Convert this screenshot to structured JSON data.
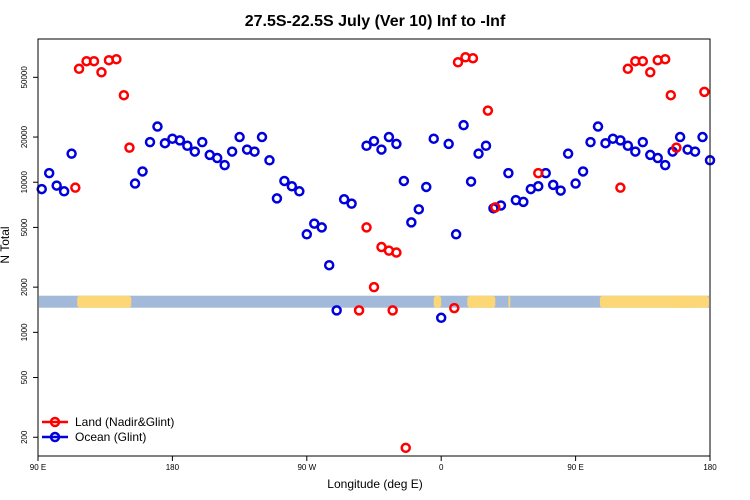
{
  "chart_data": {
    "type": "scatter",
    "title": "27.5S-22.5S July (Ver 10)   Inf to -Inf",
    "xlabel": "Longitude (deg E)",
    "ylabel": "N Total",
    "xlim": [
      90,
      450
    ],
    "ylim": [
      150,
      90000
    ],
    "yscale": "log",
    "grid": false,
    "legend_position": "bottom-left",
    "x_ticks": [
      {
        "value": 90,
        "label": "90 E"
      },
      {
        "value": 162,
        "label": "180"
      },
      {
        "value": 234,
        "label": "90 W"
      },
      {
        "value": 306,
        "label": "0"
      },
      {
        "value": 378,
        "label": "90 E"
      },
      {
        "value": 450,
        "label": "180"
      }
    ],
    "y_ticks": [
      {
        "value": 200,
        "label": "200"
      },
      {
        "value": 500,
        "label": "500"
      },
      {
        "value": 1000,
        "label": "1000"
      },
      {
        "value": 2000,
        "label": "2000"
      },
      {
        "value": 5000,
        "label": "5000"
      },
      {
        "value": 10000,
        "label": "10000"
      },
      {
        "value": 20000,
        "label": "20000"
      },
      {
        "value": 50000,
        "label": "50000"
      }
    ],
    "land_mask": {
      "y_center": 1600,
      "ocean_color": "#a2b9d9",
      "land_color": "#fbd775",
      "land_segments": [
        [
          111,
          140
        ],
        [
          320,
          335
        ],
        [
          342,
          343
        ],
        [
          430,
          471
        ],
        [
          302,
          306
        ],
        [
          391,
          441
        ]
      ]
    },
    "series": [
      {
        "name": "Land (Nadir&Glint)",
        "color": "#ff0000",
        "x": [
          110,
          112,
          116,
          120,
          124,
          128,
          132,
          136,
          139,
          262,
          266,
          270,
          274,
          278,
          280,
          282,
          287,
          313,
          315,
          319,
          323,
          331,
          335,
          358,
          402,
          406,
          410,
          414,
          418,
          422,
          426,
          429,
          432,
          447
        ],
        "y": [
          9200,
          57000,
          64000,
          64000,
          54000,
          65000,
          66000,
          38000,
          17000,
          1400,
          5000,
          2000,
          3700,
          3500,
          1400,
          3400,
          170,
          1450,
          63000,
          68000,
          67000,
          30000,
          6800,
          11500,
          9200,
          57000,
          64000,
          64000,
          54000,
          65000,
          66000,
          38000,
          17000,
          40000
        ]
      },
      {
        "name": "Ocean (Glint)",
        "color": "#0000dd",
        "x": [
          92,
          96,
          100,
          104,
          108,
          142,
          146,
          150,
          154,
          158,
          162,
          166,
          170,
          174,
          178,
          182,
          186,
          190,
          194,
          198,
          202,
          206,
          210,
          214,
          218,
          222,
          226,
          230,
          234,
          238,
          242,
          246,
          250,
          254,
          258,
          266,
          270,
          274,
          278,
          282,
          286,
          290,
          294,
          298,
          302,
          306,
          310,
          314,
          318,
          322,
          326,
          330,
          334,
          338,
          342,
          346,
          350,
          354,
          358,
          362,
          366,
          370,
          374,
          378,
          382,
          386,
          390,
          394,
          398,
          402,
          406,
          410,
          414,
          418,
          422,
          426,
          430,
          434,
          438,
          442,
          446,
          450
        ],
        "y": [
          9000,
          11500,
          9500,
          8700,
          15500,
          9800,
          11800,
          18500,
          23500,
          18200,
          19500,
          19000,
          17500,
          16000,
          18500,
          15200,
          14500,
          13000,
          16000,
          20000,
          16500,
          16000,
          20000,
          14000,
          7800,
          10200,
          9400,
          8700,
          4500,
          5300,
          5000,
          2800,
          1400,
          7700,
          7200,
          17500,
          18800,
          16500,
          20000,
          18000,
          10200,
          5400,
          6600,
          9300,
          19500,
          1250,
          18000,
          4500,
          24000,
          10100,
          15500,
          17500,
          6700,
          7000,
          11500,
          7600,
          7400,
          9000,
          9400,
          11500,
          9600,
          8800,
          15500,
          9800,
          11800,
          18500,
          23500,
          18200,
          19500,
          19000,
          17500,
          16000,
          18500,
          15200,
          14500,
          13000,
          16000,
          20000,
          16500,
          16000,
          20000,
          14000
        ]
      }
    ]
  }
}
